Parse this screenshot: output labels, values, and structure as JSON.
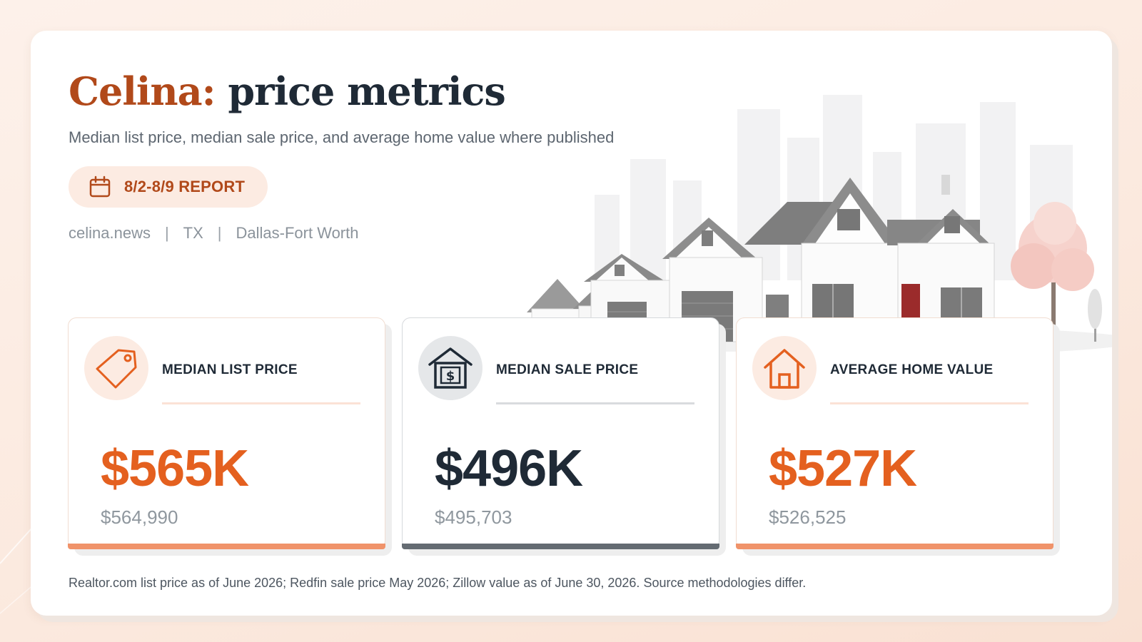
{
  "header": {
    "city": "Celina:",
    "title_rest": "price metrics",
    "subtitle": "Median list price, median sale price, and average home value where published"
  },
  "report": {
    "label": "8/2-8/9 REPORT",
    "icon": "calendar-icon"
  },
  "meta": {
    "site": "celina.news",
    "separator": "|",
    "state": "TX",
    "region": "Dallas-Fort Worth"
  },
  "metrics": [
    {
      "label": "MEDIAN LIST PRICE",
      "value": "$565K",
      "exact": "$564,990",
      "icon": "price-tag-icon",
      "accent": "#e4601f"
    },
    {
      "label": "MEDIAN SALE PRICE",
      "value": "$496K",
      "exact": "$495,703",
      "icon": "house-dollar-icon",
      "accent": "#1f2a36"
    },
    {
      "label": "AVERAGE HOME VALUE",
      "value": "$527K",
      "exact": "$526,525",
      "icon": "house-icon",
      "accent": "#e4601f"
    }
  ],
  "footnote": "Realtor.com list price as of June 2026; Redfin sale price May 2026; Zillow value as of June 30, 2026. Source methodologies differ.",
  "colors": {
    "city_title": "#b1491a",
    "title_dark": "#1f2a36",
    "accent_orange": "#e4601f",
    "bar_orange": "#f0936a",
    "bar_gray": "#646b72",
    "pill_bg": "#fcebe2"
  },
  "hero_image": "suburban-houses-illustration"
}
